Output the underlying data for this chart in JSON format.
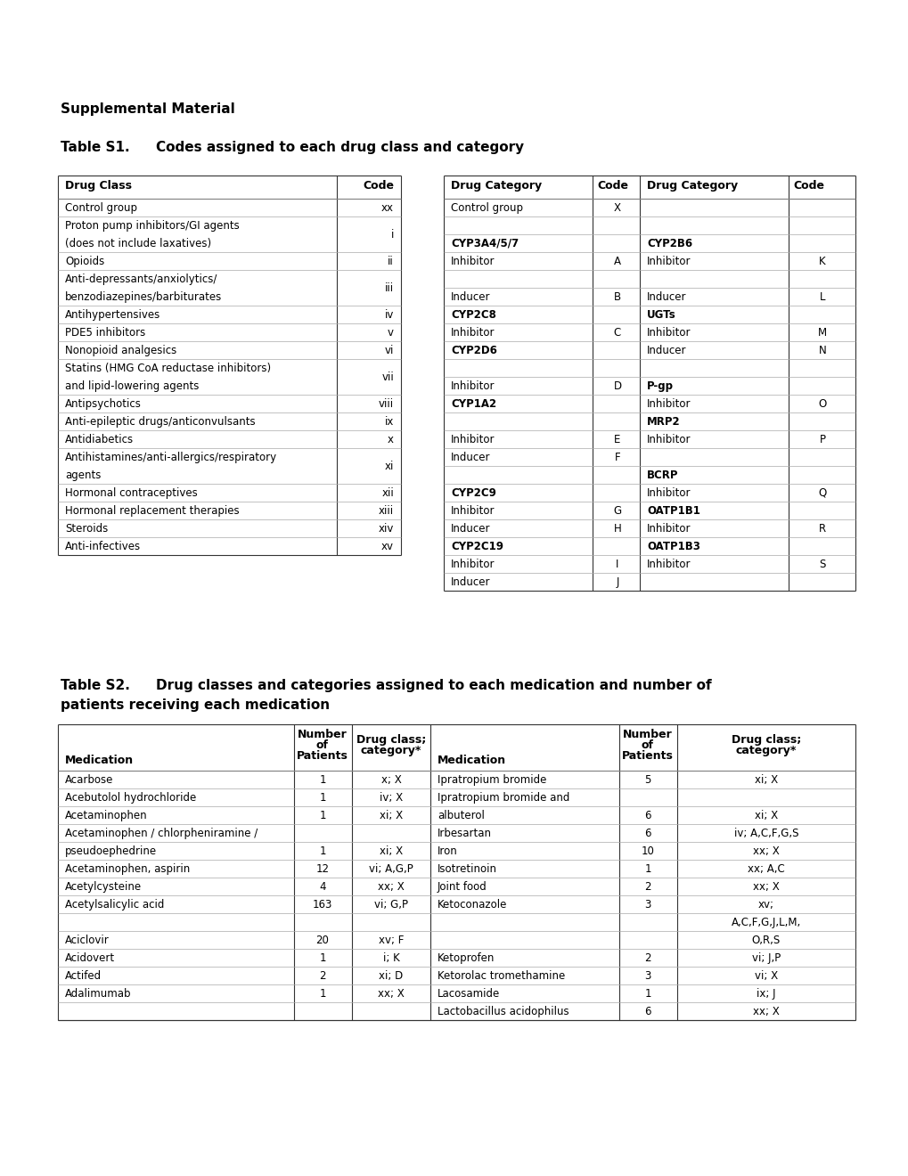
{
  "bg_color": "#ffffff",
  "supplemental_title": "Supplemental Material",
  "s1_label": "Table S1.",
  "s1_title": "Codes assigned to each drug class and category",
  "s2_label": "Table S2.",
  "s2_title_line1": "Drug classes and categories assigned to each medication and number of",
  "s2_title_line2": "patients receiving each medication",
  "t1_rows": [
    [
      "Control group",
      "xx",
      false
    ],
    [
      "Proton pump inhibitors/GI agents",
      "",
      false
    ],
    [
      "(does not include laxatives)",
      "i",
      false
    ],
    [
      "Opioids",
      "ii",
      false
    ],
    [
      "Anti-depressants/anxiolytics/",
      "",
      false
    ],
    [
      "benzodiazepines/barbiturates",
      "iii",
      false
    ],
    [
      "Antihypertensives",
      "iv",
      false
    ],
    [
      "PDE5 inhibitors",
      "v",
      false
    ],
    [
      "Nonopioid analgesics",
      "vi",
      false
    ],
    [
      "Statins (HMG CoA reductase inhibitors)",
      "",
      false
    ],
    [
      "and lipid-lowering agents",
      "vii",
      false
    ],
    [
      "Antipsychotics",
      "viii",
      false
    ],
    [
      "Anti-epileptic drugs/anticonvulsants",
      "ix",
      false
    ],
    [
      "Antidiabetics",
      "x",
      false
    ],
    [
      "Antihistamines/anti-allergics/respiratory",
      "",
      false
    ],
    [
      "agents",
      "xi",
      false
    ],
    [
      "Hormonal contraceptives",
      "xii",
      false
    ],
    [
      "Hormonal replacement therapies",
      "xiii",
      false
    ],
    [
      "Steroids",
      "xiv",
      false
    ],
    [
      "Anti-infectives",
      "xv",
      false
    ]
  ],
  "t2_rows": [
    [
      "Control group",
      "X",
      false,
      "",
      "",
      false
    ],
    [
      "",
      "",
      false,
      "",
      "",
      false
    ],
    [
      "CYP3A4/5/7",
      "",
      true,
      "CYP2B6",
      "",
      true
    ],
    [
      "Inhibitor",
      "A",
      false,
      "Inhibitor",
      "K",
      false
    ],
    [
      "",
      "",
      false,
      "",
      "",
      false
    ],
    [
      "Inducer",
      "B",
      false,
      "Inducer",
      "L",
      false
    ],
    [
      "CYP2C8",
      "",
      true,
      "UGTs",
      "",
      true
    ],
    [
      "Inhibitor",
      "C",
      false,
      "Inhibitor",
      "M",
      false
    ],
    [
      "CYP2D6",
      "",
      true,
      "Inducer",
      "N",
      false
    ],
    [
      "",
      "",
      false,
      "",
      "",
      false
    ],
    [
      "Inhibitor",
      "D",
      false,
      "P-gp",
      "",
      true
    ],
    [
      "CYP1A2",
      "",
      true,
      "Inhibitor",
      "O",
      false
    ],
    [
      "",
      "",
      false,
      "MRP2",
      "",
      true
    ],
    [
      "Inhibitor",
      "E",
      false,
      "Inhibitor",
      "P",
      false
    ],
    [
      "Inducer",
      "F",
      false,
      "",
      "",
      false
    ],
    [
      "",
      "",
      false,
      "BCRP",
      "",
      true
    ],
    [
      "CYP2C9",
      "",
      true,
      "Inhibitor",
      "Q",
      false
    ],
    [
      "Inhibitor",
      "G",
      false,
      "OATP1B1",
      "",
      true
    ],
    [
      "Inducer",
      "H",
      false,
      "Inhibitor",
      "R",
      false
    ],
    [
      "CYP2C19",
      "",
      true,
      "OATP1B3",
      "",
      true
    ],
    [
      "Inhibitor",
      "I",
      false,
      "Inhibitor",
      "S",
      false
    ],
    [
      "Inducer",
      "J",
      false,
      "",
      "",
      false
    ]
  ],
  "ts2_left": [
    [
      "Acarbose",
      "1",
      "x; X"
    ],
    [
      "Acebutolol hydrochloride",
      "1",
      "iv; X"
    ],
    [
      "Acetaminophen",
      "1",
      "xi; X"
    ],
    [
      "Acetaminophen / chlorpheniramine /",
      "",
      ""
    ],
    [
      "pseudoephedrine",
      "1",
      "xi; X"
    ],
    [
      "Acetaminophen, aspirin",
      "12",
      "vi; A,G,P"
    ],
    [
      "Acetylcysteine",
      "4",
      "xx; X"
    ],
    [
      "Acetylsalicylic acid",
      "163",
      "vi; G,P"
    ],
    [
      "",
      "",
      ""
    ],
    [
      "Aciclovir",
      "20",
      "xv; F"
    ],
    [
      "Acidovert",
      "1",
      "i; K"
    ],
    [
      "Actifed",
      "2",
      "xi; D"
    ],
    [
      "Adalimumab",
      "1",
      "xx; X"
    ]
  ],
  "ts2_right": [
    [
      "Ipratropium bromide",
      "5",
      "xi; X"
    ],
    [
      "Ipratropium bromide and",
      "",
      ""
    ],
    [
      "albuterol",
      "6",
      "xi; X"
    ],
    [
      "Irbesartan",
      "6",
      "iv; A,C,F,G,S"
    ],
    [
      "Iron",
      "10",
      "xx; X"
    ],
    [
      "Isotretinoin",
      "1",
      "xx; A,C"
    ],
    [
      "Joint food",
      "2",
      "xx; X"
    ],
    [
      "Ketoconazole",
      "3",
      "xv;"
    ],
    [
      "",
      "",
      "A,C,F,G,J,L,M,"
    ],
    [
      "",
      "",
      "O,R,S"
    ],
    [
      "Ketoprofen",
      "2",
      "vi; J,P"
    ],
    [
      "Ketorolac tromethamine",
      "3",
      "vi; X"
    ],
    [
      "Lacosamide",
      "1",
      "ix; J"
    ],
    [
      "Lactobacillus acidophilus",
      "6",
      "xx; X"
    ]
  ]
}
